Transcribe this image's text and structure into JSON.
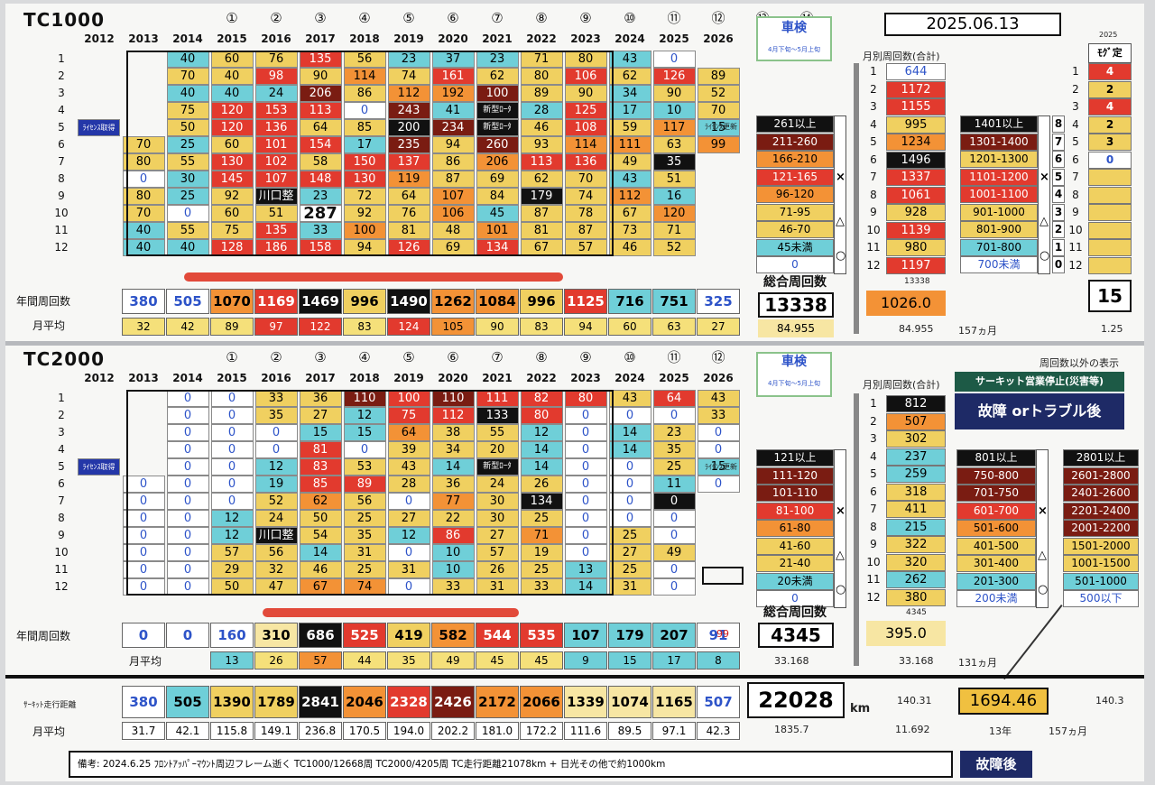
{
  "colors": {
    "y": "#f0d060",
    "y2": "#f5e07a",
    "o": "#f39236",
    "r": "#e23a2e",
    "dr": "#7a1c12",
    "bk": "#111111",
    "cy": "#6fcfd8",
    "w": "#ffffff",
    "lo": "#f7e6a3"
  },
  "tc1000": {
    "title": "TC1000",
    "circled": [
      "①",
      "②",
      "③",
      "④",
      "⑤",
      "⑥",
      "⑦",
      "⑧",
      "⑨",
      "⑩",
      "⑪",
      "⑫",
      "⑬",
      "⑭"
    ],
    "years": [
      "2012",
      "2013",
      "2014",
      "2015",
      "2016",
      "2017",
      "2018",
      "2019",
      "2020",
      "2021",
      "2022",
      "2023",
      "2024",
      "2025",
      "2026"
    ],
    "months": [
      "1",
      "2",
      "3",
      "4",
      "5",
      "6",
      "7",
      "8",
      "9",
      "10",
      "11",
      "12"
    ],
    "grid": [
      [
        "",
        "40",
        "60",
        "76",
        "135",
        "56",
        "23",
        "37",
        "23",
        "71",
        "80",
        "43",
        "0",
        ""
      ],
      [
        "",
        "70",
        "40",
        "98",
        "90",
        "114",
        "74",
        "161",
        "62",
        "80",
        "106",
        "62",
        "126",
        "89"
      ],
      [
        "",
        "40",
        "40",
        "24",
        "206",
        "86",
        "112",
        "192",
        "100",
        "89",
        "90",
        "34",
        "90",
        "52"
      ],
      [
        "",
        "75",
        "120",
        "153",
        "113",
        "0",
        "243",
        "41",
        "新型ﾛｰﾀ",
        "28",
        "125",
        "17",
        "10",
        "70"
      ],
      [
        "ﾗｲｾﾝｽ取得",
        "50",
        "120",
        "136",
        "64",
        "85",
        "200",
        "234",
        "新型ﾛｰﾀ",
        "46",
        "108",
        "59",
        "117",
        "15"
      ],
      [
        "70",
        "25",
        "60",
        "101",
        "154",
        "17",
        "235",
        "94",
        "260",
        "93",
        "114",
        "111",
        "63",
        "99"
      ],
      [
        "80",
        "55",
        "130",
        "102",
        "58",
        "150",
        "137",
        "86",
        "206",
        "113",
        "136",
        "49",
        "35",
        ""
      ],
      [
        "0",
        "30",
        "145",
        "107",
        "148",
        "130",
        "119",
        "87",
        "69",
        "62",
        "70",
        "43",
        "51",
        ""
      ],
      [
        "80",
        "25",
        "92",
        "川口整",
        "23",
        "72",
        "64",
        "107",
        "84",
        "179",
        "74",
        "112",
        "16",
        ""
      ],
      [
        "70",
        "0",
        "60",
        "51",
        "287",
        "92",
        "76",
        "106",
        "45",
        "87",
        "78",
        "67",
        "120",
        ""
      ],
      [
        "40",
        "55",
        "75",
        "135",
        "33",
        "100",
        "81",
        "48",
        "101",
        "81",
        "87",
        "73",
        "71",
        ""
      ],
      [
        "40",
        "40",
        "128",
        "186",
        "158",
        "94",
        "126",
        "69",
        "134",
        "67",
        "57",
        "46",
        "52",
        ""
      ]
    ],
    "cls": [
      [
        "e",
        "cy",
        "y",
        "y",
        "r",
        "y",
        "cy",
        "cy",
        "cy",
        "y",
        "y",
        "cy",
        "w",
        "e"
      ],
      [
        "e",
        "y",
        "y",
        "r",
        "y",
        "o",
        "y",
        "r",
        "y",
        "y",
        "r",
        "y",
        "r",
        "y"
      ],
      [
        "e",
        "cy",
        "cy",
        "cy",
        "dr",
        "y",
        "o",
        "o",
        "dr",
        "y",
        "y",
        "cy",
        "y",
        "y"
      ],
      [
        "e",
        "y",
        "r",
        "r",
        "r",
        "w",
        "dr",
        "cy",
        "bk",
        "cy",
        "r",
        "cy",
        "cy",
        "y"
      ],
      [
        "lic",
        "y",
        "r",
        "r",
        "y",
        "y",
        "bk",
        "dr",
        "bk",
        "y",
        "r",
        "y",
        "o",
        "cy"
      ],
      [
        "y",
        "cy",
        "y",
        "r",
        "r",
        "cy",
        "dr",
        "y",
        "dr",
        "y",
        "o",
        "o",
        "y",
        "o"
      ],
      [
        "y",
        "y",
        "r",
        "r",
        "y",
        "r",
        "r",
        "y",
        "o",
        "r",
        "r",
        "y",
        "bk",
        "e"
      ],
      [
        "w",
        "cy",
        "r",
        "r",
        "r",
        "r",
        "o",
        "y",
        "y",
        "y",
        "y",
        "cy",
        "y",
        "e"
      ],
      [
        "y",
        "cy",
        "y",
        "bk",
        "cy",
        "y",
        "y",
        "o",
        "y",
        "bk",
        "y",
        "o",
        "cy",
        "e"
      ],
      [
        "y",
        "w",
        "y",
        "y",
        "bkb",
        "y",
        "y",
        "o",
        "cy",
        "y",
        "y",
        "y",
        "o",
        "e"
      ],
      [
        "cy",
        "y",
        "y",
        "r",
        "cy",
        "o",
        "y",
        "y",
        "o",
        "y",
        "y",
        "y",
        "y",
        "e"
      ],
      [
        "cy",
        "cy",
        "r",
        "r",
        "r",
        "y",
        "r",
        "y",
        "r",
        "y",
        "y",
        "y",
        "y",
        "e"
      ]
    ],
    "annual_label": "年間周回数",
    "annual": [
      "380",
      "505",
      "1070",
      "1169",
      "1469",
      "996",
      "1490",
      "1262",
      "1084",
      "996",
      "1125",
      "716",
      "751",
      "325"
    ],
    "annual_cls": [
      "w",
      "w",
      "o",
      "r",
      "bk",
      "y",
      "bk",
      "o",
      "o",
      "y",
      "r",
      "cy",
      "cy",
      "w"
    ],
    "monthly_label": "月平均",
    "monthly": [
      "32",
      "42",
      "89",
      "97",
      "122",
      "83",
      "124",
      "105",
      "90",
      "83",
      "94",
      "60",
      "63",
      "27"
    ],
    "monthly_cls": [
      "y2",
      "y2",
      "y2",
      "r",
      "r",
      "y2",
      "r",
      "o",
      "y2",
      "y2",
      "y2",
      "y2",
      "y2",
      "y2"
    ],
    "shaken": "車検",
    "shaken_sub": "4月下旬～5月上旬",
    "license_note": "ﾗｲｾﾝｽ更新",
    "legend": [
      "261以上",
      "211-260",
      "166-210",
      "121-165",
      "96-120",
      "71-95",
      "46-70",
      "45未満",
      "0"
    ],
    "legend_cls": [
      "bk",
      "dr",
      "o",
      "r",
      "o",
      "y",
      "y",
      "cy",
      "w"
    ],
    "total_label": "総合周回数",
    "total": "13338",
    "total_avg": "84.955",
    "month_header": "月別周回数(合計)",
    "month_totals": [
      "644",
      "1172",
      "1155",
      "995",
      "1234",
      "1496",
      "1337",
      "1061",
      "928",
      "1139",
      "980",
      "1197"
    ],
    "month_totals_cls": [
      "w",
      "r",
      "r",
      "y",
      "o",
      "bk",
      "r",
      "r",
      "y",
      "r",
      "y",
      "r"
    ],
    "month_total_foot": "13338",
    "month_avg": "1026.0",
    "month_avg2": "84.955",
    "months_count": "157ヵ月",
    "range_legend": [
      "1401以上",
      "1301-1400",
      "1201-1300",
      "1101-1200",
      "1001-1100",
      "901-1000",
      "801-900",
      "701-800",
      "700未満"
    ],
    "range_cls": [
      "bk",
      "dr",
      "y",
      "r",
      "r",
      "y",
      "y",
      "cy",
      "w"
    ],
    "range_counts": [
      "8",
      "7",
      "6",
      "5",
      "4",
      "3",
      "2",
      "1",
      "0"
    ],
    "mogi_year": "2025",
    "mogi": "ﾓｸﾞ定",
    "mogi_vals": [
      "4",
      "2",
      "4",
      "2",
      "3",
      "0",
      "",
      "",
      "",
      "",
      "",
      ""
    ],
    "mogi_cls": [
      "r",
      "y",
      "r",
      "y",
      "y",
      "w",
      "y",
      "y",
      "y",
      "y",
      "y",
      "y"
    ],
    "mogi_total": "15",
    "mogi_avg": "1.25",
    "date": "2025.06.13"
  },
  "tc2000": {
    "title": "TC2000",
    "circled": [
      "①",
      "②",
      "③",
      "④",
      "⑤",
      "⑥",
      "⑦",
      "⑧",
      "⑨",
      "⑩",
      "⑪",
      "⑫"
    ],
    "years": [
      "2012",
      "2013",
      "2014",
      "2015",
      "2016",
      "2017",
      "2018",
      "2019",
      "2020",
      "2021",
      "2022",
      "2023",
      "2024",
      "2025",
      "2026"
    ],
    "grid": [
      [
        "",
        "0",
        "0",
        "33",
        "36",
        "110",
        "100",
        "110",
        "111",
        "82",
        "80",
        "43",
        "64",
        "43"
      ],
      [
        "",
        "0",
        "0",
        "35",
        "27",
        "12",
        "75",
        "112",
        "133",
        "80",
        "0",
        "0",
        "0",
        "33"
      ],
      [
        "",
        "0",
        "0",
        "0",
        "15",
        "15",
        "64",
        "38",
        "55",
        "12",
        "0",
        "14",
        "23",
        "0"
      ],
      [
        "",
        "0",
        "0",
        "0",
        "81",
        "0",
        "39",
        "34",
        "20",
        "14",
        "0",
        "14",
        "35",
        "0"
      ],
      [
        "ﾗｲｾﾝｽ取得",
        "0",
        "0",
        "12",
        "83",
        "53",
        "43",
        "14",
        "新型ﾛｰﾀ",
        "14",
        "0",
        "0",
        "25",
        "15"
      ],
      [
        "0",
        "0",
        "0",
        "19",
        "85",
        "89",
        "28",
        "36",
        "24",
        "26",
        "0",
        "0",
        "11",
        "0"
      ],
      [
        "0",
        "0",
        "0",
        "52",
        "62",
        "56",
        "0",
        "77",
        "30",
        "134",
        "0",
        "0",
        "0",
        ""
      ],
      [
        "0",
        "0",
        "12",
        "24",
        "50",
        "25",
        "27",
        "22",
        "30",
        "25",
        "0",
        "0",
        "0",
        ""
      ],
      [
        "0",
        "0",
        "12",
        "川口整",
        "54",
        "35",
        "12",
        "86",
        "27",
        "71",
        "0",
        "25",
        "0",
        ""
      ],
      [
        "0",
        "0",
        "57",
        "56",
        "14",
        "31",
        "0",
        "10",
        "57",
        "19",
        "0",
        "27",
        "49",
        ""
      ],
      [
        "0",
        "0",
        "29",
        "32",
        "46",
        "25",
        "31",
        "10",
        "26",
        "25",
        "13",
        "25",
        "0",
        ""
      ],
      [
        "0",
        "0",
        "50",
        "47",
        "67",
        "74",
        "0",
        "33",
        "31",
        "33",
        "14",
        "31",
        "0",
        ""
      ]
    ],
    "cls": [
      [
        "e",
        "w",
        "w",
        "y",
        "y",
        "dr",
        "r",
        "dr",
        "r",
        "r",
        "r",
        "y",
        "r",
        "y"
      ],
      [
        "e",
        "w",
        "w",
        "y",
        "y",
        "cy",
        "r",
        "r",
        "bk",
        "r",
        "w",
        "w",
        "w",
        "y"
      ],
      [
        "e",
        "w",
        "w",
        "w",
        "cy",
        "cy",
        "o",
        "y",
        "y",
        "cy",
        "w",
        "cy",
        "y",
        "w"
      ],
      [
        "e",
        "w",
        "w",
        "w",
        "r",
        "w",
        "y",
        "y",
        "y",
        "cy",
        "w",
        "cy",
        "y",
        "w"
      ],
      [
        "lic",
        "w",
        "w",
        "cy",
        "r",
        "y",
        "y",
        "cy",
        "bk",
        "cy",
        "w",
        "w",
        "y",
        "cy"
      ],
      [
        "w",
        "w",
        "w",
        "cy",
        "r",
        "r",
        "y",
        "y",
        "y",
        "y",
        "w",
        "w",
        "cy",
        "w"
      ],
      [
        "w",
        "w",
        "w",
        "y",
        "o",
        "y",
        "w",
        "o",
        "y",
        "bk",
        "w",
        "w",
        "bk",
        "e"
      ],
      [
        "w",
        "w",
        "cy",
        "y",
        "y",
        "y",
        "y",
        "y",
        "y",
        "y",
        "w",
        "w",
        "w",
        "e"
      ],
      [
        "w",
        "w",
        "cy",
        "bk",
        "y",
        "y",
        "cy",
        "r",
        "y",
        "o",
        "w",
        "y",
        "w",
        "e"
      ],
      [
        "w",
        "w",
        "y",
        "y",
        "cy",
        "y",
        "w",
        "cy",
        "y",
        "y",
        "w",
        "y",
        "y",
        "e"
      ],
      [
        "w",
        "w",
        "y",
        "y",
        "y",
        "y",
        "y",
        "cy",
        "y",
        "y",
        "cy",
        "y",
        "w",
        "e"
      ],
      [
        "w",
        "w",
        "y",
        "y",
        "o",
        "o",
        "w",
        "y",
        "y",
        "y",
        "cy",
        "y",
        "w",
        "e"
      ]
    ],
    "annual_label": "年間周回数",
    "annual": [
      "0",
      "0",
      "160",
      "310",
      "686",
      "525",
      "419",
      "582",
      "544",
      "535",
      "107",
      "179",
      "207",
      "91"
    ],
    "annual_cls": [
      "w",
      "w",
      "w",
      "lo",
      "bk",
      "r",
      "y",
      "o",
      "r",
      "r",
      "cy",
      "cy",
      "cy",
      "w"
    ],
    "annual_extra": "99",
    "monthly_label": "月平均",
    "monthly": [
      "13",
      "26",
      "57",
      "44",
      "35",
      "49",
      "45",
      "45",
      "9",
      "15",
      "17",
      "8"
    ],
    "monthly_cls": [
      "cy",
      "y2",
      "o",
      "y2",
      "y2",
      "y2",
      "y2",
      "y2",
      "cy",
      "cy",
      "cy",
      "cy"
    ],
    "shaken": "車検",
    "shaken_sub": "4月下旬～5月上旬",
    "license_note": "ﾗｲｾﾝｽ更新",
    "legend": [
      "121以上",
      "111-120",
      "101-110",
      "81-100",
      "61-80",
      "41-60",
      "21-40",
      "20未満",
      "0"
    ],
    "legend_cls": [
      "bk",
      "dr",
      "dr",
      "r",
      "o",
      "y",
      "y",
      "cy",
      "w"
    ],
    "total_label": "総合周回数",
    "total": "4345",
    "total_avg": "33.168",
    "month_header": "月別周回数(合計)",
    "month_totals": [
      "812",
      "507",
      "302",
      "237",
      "259",
      "318",
      "411",
      "215",
      "322",
      "320",
      "262",
      "380"
    ],
    "month_totals_cls": [
      "bk",
      "o",
      "y",
      "cy",
      "cy",
      "y",
      "y",
      "cy",
      "y",
      "y",
      "cy",
      "y"
    ],
    "month_total_foot": "4345",
    "month_avg": "395.0",
    "month_avg2": "33.168",
    "months_count": "131ヵ月",
    "range_legend": [
      "801以上",
      "750-800",
      "701-750",
      "601-700",
      "501-600",
      "401-500",
      "301-400",
      "201-300",
      "200未満"
    ],
    "range_cls": [
      "bk",
      "dr",
      "dr",
      "r",
      "o",
      "y",
      "y",
      "cy",
      "w"
    ],
    "range2_legend": [
      "2801以上",
      "2601-2800",
      "2401-2600",
      "2201-2400",
      "2001-2200",
      "1501-2000",
      "1001-1500",
      "501-1000",
      "500以下"
    ],
    "range2_cls": [
      "bk",
      "dr",
      "dr",
      "dr",
      "dr",
      "y",
      "y",
      "cy",
      "w"
    ],
    "other_label": "周回数以外の表示",
    "circuit_stop": "サーキット営業停止(災害等)",
    "fault_label": "故障 orトラブル後"
  },
  "distance": {
    "label": "ｻｰｷｯﾄ走行距離",
    "values": [
      "380",
      "505",
      "1390",
      "1789",
      "2841",
      "2046",
      "2328",
      "2426",
      "2172",
      "2066",
      "1339",
      "1074",
      "1165",
      "507"
    ],
    "cls": [
      "w",
      "cy",
      "y",
      "y",
      "bk",
      "o",
      "r",
      "dr",
      "o",
      "o",
      "lo",
      "lo",
      "lo",
      "w"
    ],
    "avg_label": "月平均",
    "avgs": [
      "31.7",
      "42.1",
      "115.8",
      "149.1",
      "236.8",
      "170.5",
      "194.0",
      "202.2",
      "181.0",
      "172.2",
      "111.6",
      "89.5",
      "97.1",
      "42.3"
    ],
    "total": "22028",
    "unit": "km",
    "total_avg": "1835.7",
    "total_small": "140.31",
    "total_small2": "11.692",
    "yearly": "1694.46",
    "yearly_small": "140.3",
    "years": "13年",
    "months": "157ヵ月"
  },
  "remarks": {
    "text": "備考:  2024.6.25 ﾌﾛﾝﾄｱｯﾊﾟｰﾏｳﾝﾄ周辺フレーム逝く TC1000/12668周 TC2000/4205周  TC走行距離21078km  +  日光その他で約1000km",
    "fault": "故障後"
  }
}
